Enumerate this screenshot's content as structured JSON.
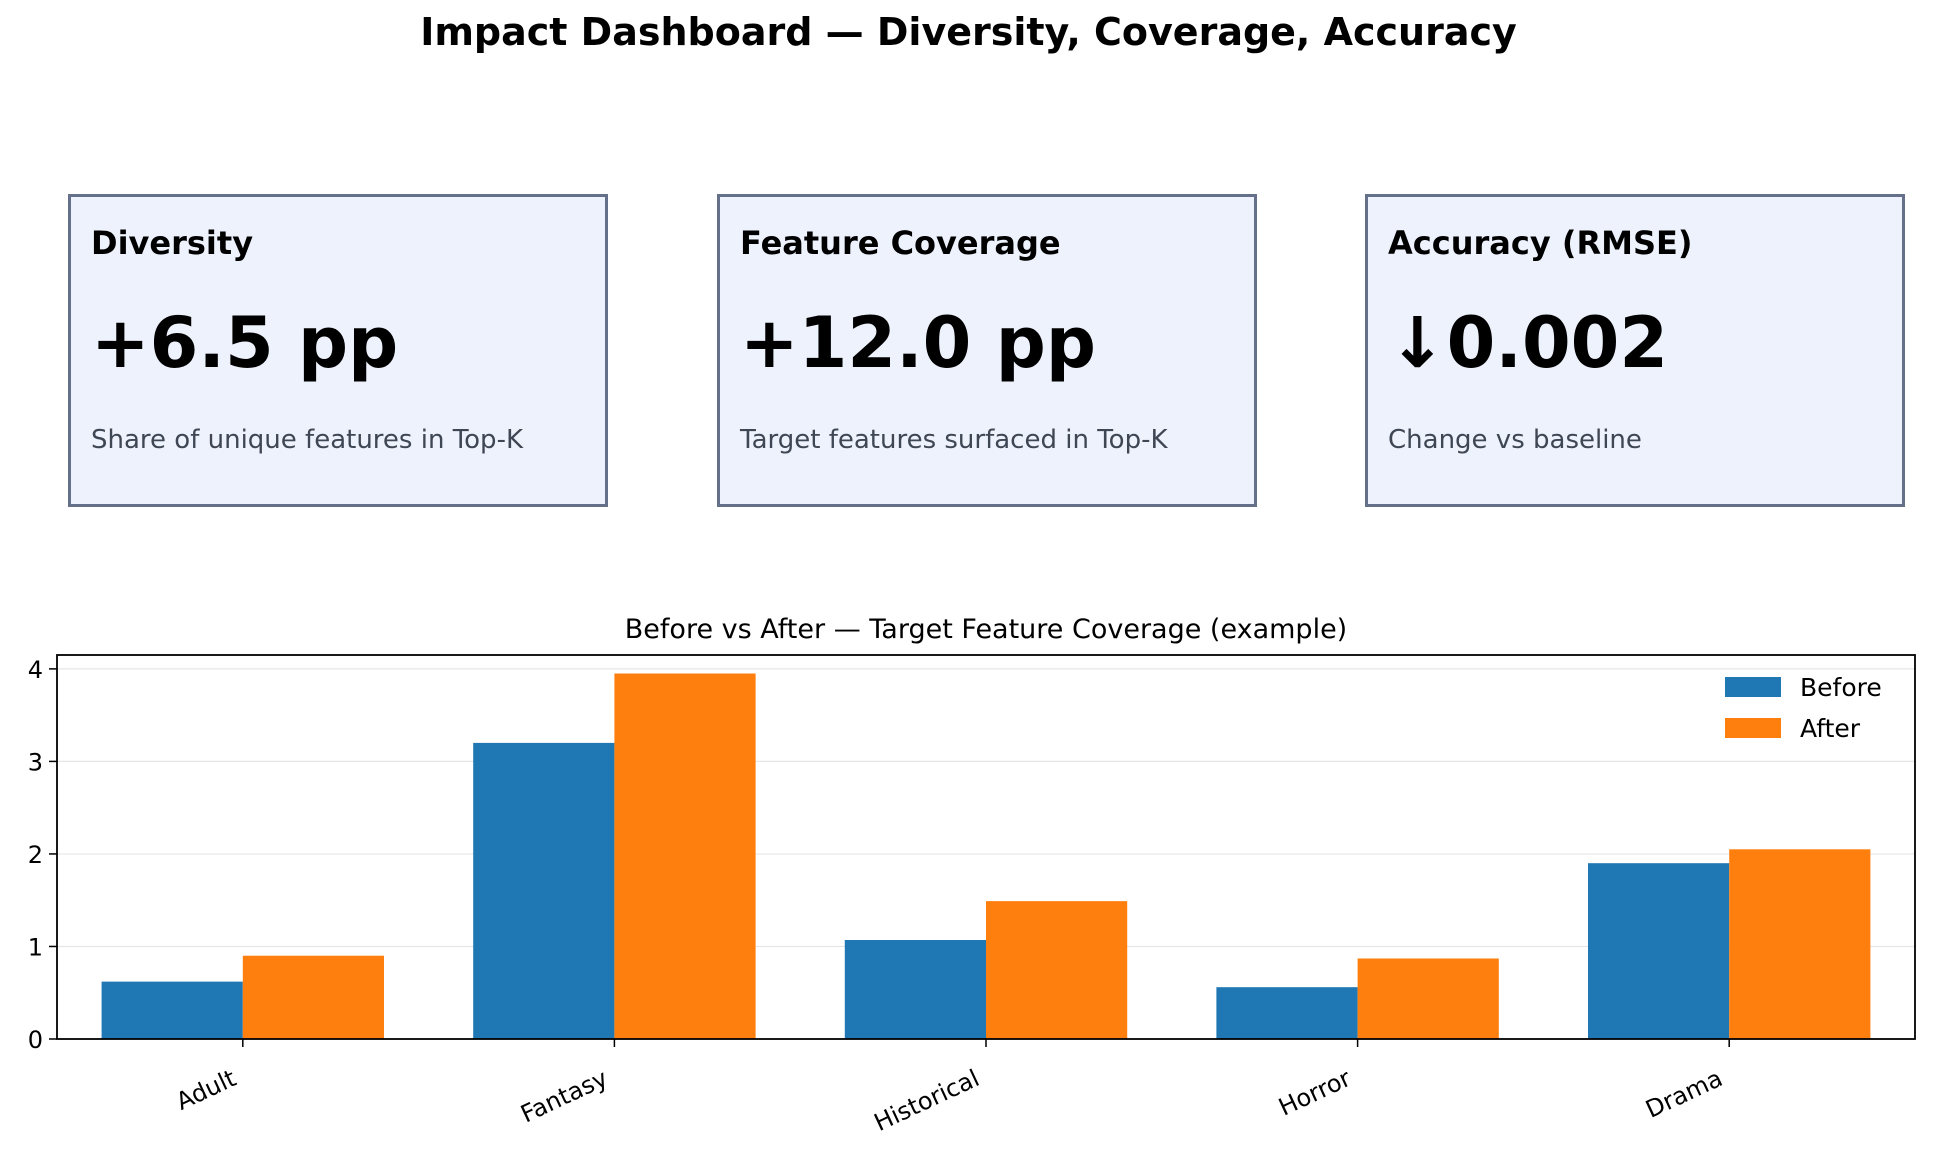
{
  "dashboard": {
    "title": "Impact Dashboard — Diversity, Coverage, Accuracy",
    "cards": [
      {
        "title": "Diversity",
        "value": "+6.5 pp",
        "subtitle": "Share of unique features in Top-K"
      },
      {
        "title": "Feature Coverage",
        "value": "+12.0 pp",
        "subtitle": "Target features surfaced in Top-K"
      },
      {
        "title": "Accuracy (RMSE)",
        "value": "↓0.002",
        "subtitle": "Change vs baseline"
      }
    ],
    "card_background": "#edf2fd",
    "card_border": "#65718a"
  },
  "chart_data": {
    "type": "bar",
    "title": "Before vs After — Target Feature Coverage (example)",
    "xlabel": "",
    "ylabel": "",
    "categories": [
      "Adult",
      "Fantasy",
      "Historical",
      "Horror",
      "Drama"
    ],
    "series": [
      {
        "name": "Before",
        "color": "#1f77b4",
        "values": [
          0.62,
          3.2,
          1.07,
          0.56,
          1.9
        ]
      },
      {
        "name": "After",
        "color": "#ff7f0e",
        "values": [
          0.9,
          3.95,
          1.49,
          0.87,
          2.05
        ]
      }
    ],
    "ylim": [
      0,
      4.15
    ],
    "yticks": [
      0,
      1,
      2,
      3,
      4
    ],
    "grid": "horizontal",
    "legend": "top-right"
  }
}
